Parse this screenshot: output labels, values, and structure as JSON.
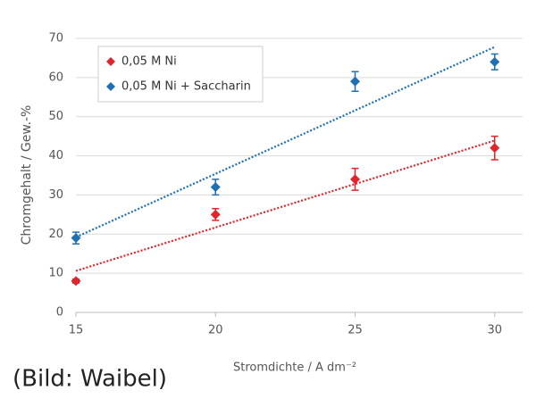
{
  "chart_data": {
    "type": "scatter",
    "x_label": "Stromdichte / A dm⁻²",
    "y_label": "Chromgehalt / Gew.-%",
    "caption": "(Bild: Waibel)",
    "x": [
      15,
      20,
      25,
      30
    ],
    "series": [
      {
        "name": "0,05 M Ni",
        "color": "#e0252c",
        "values": [
          8,
          25,
          34,
          42
        ],
        "errors": [
          0.5,
          1.5,
          2.8,
          3
        ]
      },
      {
        "name": "0,05 M Ni + Saccharin",
        "color": "#1f6fb5",
        "values": [
          19,
          32,
          59,
          64
        ],
        "errors": [
          1.5,
          2,
          2.5,
          2
        ]
      }
    ],
    "xlim": [
      15,
      31
    ],
    "xticks": [
      15,
      20,
      25,
      30
    ],
    "ylim": [
      0,
      70
    ],
    "yticks": [
      0,
      10,
      20,
      30,
      40,
      50,
      60,
      70
    ],
    "grid": true,
    "trendline": true,
    "legend": "upper left"
  }
}
